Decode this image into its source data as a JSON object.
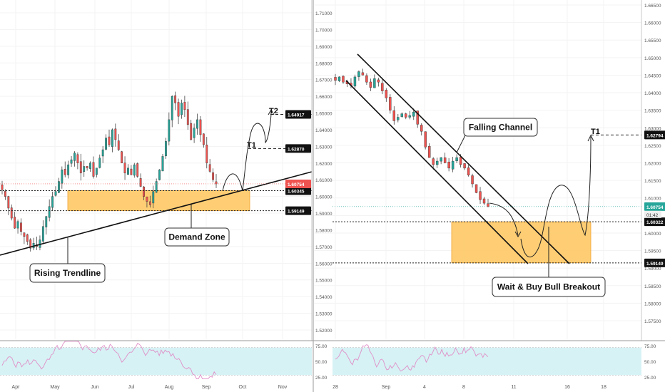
{
  "chart_data": [
    {
      "type": "candlestick",
      "panel": "left",
      "y_ticks": [
        "1.71000",
        "1.70000",
        "1.69000",
        "1.68000",
        "1.67000",
        "1.66000",
        "1.65000",
        "1.64000",
        "1.63000",
        "1.62000",
        "1.61000",
        "1.60000",
        "1.59000",
        "1.58000",
        "1.57000",
        "1.56000",
        "1.55000",
        "1.54000",
        "1.53000",
        "1.52000"
      ],
      "x_ticks": [
        "Apr",
        "May",
        "Jun",
        "Jul",
        "Aug",
        "Sep",
        "Oct",
        "Nov"
      ],
      "ylim": [
        1.515,
        1.715
      ],
      "current_price": {
        "label": "1.60754",
        "value": 1.60754,
        "color": "#ef5350"
      },
      "levels": [
        {
          "label": "1.64917",
          "value": 1.64917,
          "style": "dashed"
        },
        {
          "label": "1.62870",
          "value": 1.6287,
          "style": "dashed"
        },
        {
          "label": "1.60345",
          "value": 1.60345,
          "style": "dotted"
        },
        {
          "label": "1.59149",
          "value": 1.59149,
          "style": "dotted"
        }
      ],
      "target_labels": [
        "T2",
        "T1"
      ],
      "callouts": [
        "Rising Trendline",
        "Demand Zone"
      ],
      "zone": {
        "from": 1.5915,
        "to": 1.6035,
        "color": "#ffc55c"
      },
      "trendline": {
        "from_date": "Apr",
        "from_value": 1.5645,
        "to_date": "Nov",
        "to_value": 1.6175
      },
      "ohlc_closes": [
        1.604,
        1.6,
        1.593,
        1.587,
        1.581,
        1.585,
        1.579,
        1.576,
        1.573,
        1.569,
        1.572,
        1.57,
        1.574,
        1.582,
        1.588,
        1.594,
        1.6,
        1.603,
        1.609,
        1.616,
        1.613,
        1.619,
        1.622,
        1.626,
        1.62,
        1.614,
        1.618,
        1.617,
        1.62,
        1.612,
        1.617,
        1.623,
        1.628,
        1.635,
        1.631,
        1.64,
        1.634,
        1.628,
        1.62,
        1.614,
        1.617,
        1.613,
        1.619,
        1.612,
        1.606,
        1.6,
        1.597,
        1.595,
        1.603,
        1.609,
        1.616,
        1.624,
        1.633,
        1.646,
        1.66,
        1.656,
        1.648,
        1.656,
        1.652,
        1.643,
        1.634,
        1.641,
        1.646,
        1.637,
        1.631,
        1.62,
        1.615,
        1.61,
        1.6075
      ]
    },
    {
      "type": "candlestick",
      "panel": "right",
      "y_ticks": [
        "1.66500",
        "1.66000",
        "1.65500",
        "1.65000",
        "1.64500",
        "1.64000",
        "1.63500",
        "1.63000",
        "1.62500",
        "1.62000",
        "1.61500",
        "1.61000",
        "1.60500",
        "1.60000",
        "1.59500",
        "1.59000",
        "1.58500",
        "1.58000",
        "1.57500"
      ],
      "x_ticks": [
        "28",
        "Sep",
        "4",
        "8",
        "11",
        "16",
        "18"
      ],
      "ylim": [
        1.5725,
        1.6665
      ],
      "current_price": {
        "label": "1.60754",
        "value": 1.60754,
        "color": "#26a69a",
        "countdown": "01:42"
      },
      "levels": [
        {
          "label": "1.62794",
          "value": 1.62794,
          "style": "dashed"
        },
        {
          "label": "1.60322",
          "value": 1.60322,
          "style": "dotted"
        },
        {
          "label": "1.59149",
          "value": 1.59149,
          "style": "dotted"
        }
      ],
      "target_labels": [
        "T1"
      ],
      "callouts": [
        "Falling Channel",
        "Wait & Buy Bull Breakout"
      ],
      "zone": {
        "from": 1.5915,
        "to": 1.6032,
        "color": "#ffc55c"
      },
      "ohlc_closes": [
        1.6435,
        1.6445,
        1.643,
        1.6425,
        1.642,
        1.6445,
        1.646,
        1.645,
        1.643,
        1.6415,
        1.644,
        1.643,
        1.6405,
        1.6385,
        1.635,
        1.632,
        1.633,
        1.634,
        1.633,
        1.6335,
        1.6345,
        1.631,
        1.629,
        1.6245,
        1.6215,
        1.6195,
        1.6205,
        1.6215,
        1.62,
        1.6185,
        1.6205,
        1.6215,
        1.6195,
        1.6185,
        1.6165,
        1.614,
        1.6115,
        1.6095,
        1.6085,
        1.6075
      ]
    }
  ],
  "rsi": {
    "left": {
      "ticks": [
        "75.00",
        "50.00",
        "25.00"
      ],
      "x_ticks": [
        "Apr",
        "May",
        "Jun",
        "Jul",
        "Aug",
        "Sep",
        "Oct",
        "Nov"
      ]
    },
    "right": {
      "ticks": [
        "75.00",
        "50.00",
        "25.00"
      ],
      "x_ticks": [
        "28",
        "Sep",
        "4",
        "8",
        "11",
        "16",
        "18"
      ]
    },
    "band_color": "#d6f2f5",
    "line_color": "#e090c8"
  }
}
